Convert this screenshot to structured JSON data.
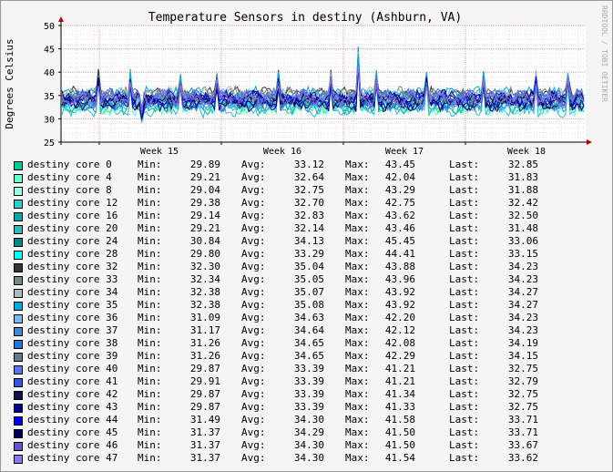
{
  "chart_data": {
    "type": "line",
    "title": "Temperature Sensors in destiny (Ashburn, VA)",
    "ylabel": "Degrees Celsius",
    "watermark": "RRDTOOL / TOBI OETIKER",
    "ylim": [
      25,
      50
    ],
    "yticks": [
      "25",
      "30",
      "35",
      "40",
      "45",
      "50"
    ],
    "xticks": [
      "Week 15",
      "Week 16",
      "Week 17",
      "Week 18"
    ],
    "grid": true,
    "stat_labels": {
      "min": "Min:",
      "avg": "Avg:",
      "max": "Max:",
      "last": "Last:"
    },
    "series": [
      {
        "name": "destiny core 0",
        "color": "#00cc99",
        "min": "29.89",
        "avg": "33.12",
        "max": "43.45",
        "last": "32.85"
      },
      {
        "name": "destiny core 4",
        "color": "#66ffcc",
        "min": "29.21",
        "avg": "32.64",
        "max": "42.04",
        "last": "31.83"
      },
      {
        "name": "destiny core 8",
        "color": "#99ffdd",
        "min": "29.04",
        "avg": "32.75",
        "max": "43.29",
        "last": "31.88"
      },
      {
        "name": "destiny core 12",
        "color": "#33cccc",
        "min": "29.38",
        "avg": "32.70",
        "max": "42.75",
        "last": "32.42"
      },
      {
        "name": "destiny core 16",
        "color": "#00aaaa",
        "min": "29.14",
        "avg": "32.83",
        "max": "43.62",
        "last": "32.50"
      },
      {
        "name": "destiny core 20",
        "color": "#33bbbb",
        "min": "29.21",
        "avg": "32.14",
        "max": "43.46",
        "last": "31.48"
      },
      {
        "name": "destiny core 24",
        "color": "#008888",
        "min": "30.84",
        "avg": "34.13",
        "max": "45.45",
        "last": "33.06"
      },
      {
        "name": "destiny core 28",
        "color": "#00ffff",
        "min": "29.80",
        "avg": "33.29",
        "max": "44.41",
        "last": "33.15"
      },
      {
        "name": "destiny core 32",
        "color": "#333333",
        "min": "32.30",
        "avg": "35.04",
        "max": "43.88",
        "last": "34.23"
      },
      {
        "name": "destiny core 33",
        "color": "#778888",
        "min": "32.34",
        "avg": "35.05",
        "max": "43.96",
        "last": "34.23"
      },
      {
        "name": "destiny core 34",
        "color": "#aabbbb",
        "min": "32.38",
        "avg": "35.07",
        "max": "43.92",
        "last": "34.27"
      },
      {
        "name": "destiny core 35",
        "color": "#00aadd",
        "min": "32.38",
        "avg": "35.08",
        "max": "43.92",
        "last": "34.27"
      },
      {
        "name": "destiny core 36",
        "color": "#77bbee",
        "min": "31.09",
        "avg": "34.63",
        "max": "42.20",
        "last": "34.23"
      },
      {
        "name": "destiny core 37",
        "color": "#4488cc",
        "min": "31.17",
        "avg": "34.64",
        "max": "42.12",
        "last": "34.23"
      },
      {
        "name": "destiny core 38",
        "color": "#2277dd",
        "min": "31.26",
        "avg": "34.65",
        "max": "42.08",
        "last": "34.19"
      },
      {
        "name": "destiny core 39",
        "color": "#667788",
        "min": "31.26",
        "avg": "34.65",
        "max": "42.29",
        "last": "34.15"
      },
      {
        "name": "destiny core 40",
        "color": "#5577ee",
        "min": "29.87",
        "avg": "33.39",
        "max": "41.21",
        "last": "32.75"
      },
      {
        "name": "destiny core 41",
        "color": "#3355dd",
        "min": "29.91",
        "avg": "33.39",
        "max": "41.21",
        "last": "32.79"
      },
      {
        "name": "destiny core 42",
        "color": "#111144",
        "min": "29.87",
        "avg": "33.39",
        "max": "41.34",
        "last": "32.75"
      },
      {
        "name": "destiny core 43",
        "color": "#000088",
        "min": "29.87",
        "avg": "33.39",
        "max": "41.33",
        "last": "32.75"
      },
      {
        "name": "destiny core 44",
        "color": "#0000ee",
        "min": "31.49",
        "avg": "34.30",
        "max": "41.58",
        "last": "33.71"
      },
      {
        "name": "destiny core 45",
        "color": "#000055",
        "min": "31.37",
        "avg": "34.29",
        "max": "41.50",
        "last": "33.71"
      },
      {
        "name": "destiny core 46",
        "color": "#6655cc",
        "min": "31.37",
        "avg": "34.30",
        "max": "41.50",
        "last": "33.67"
      },
      {
        "name": "destiny core 47",
        "color": "#8877ee",
        "min": "31.37",
        "avg": "34.30",
        "max": "41.54",
        "last": "33.62"
      }
    ]
  }
}
